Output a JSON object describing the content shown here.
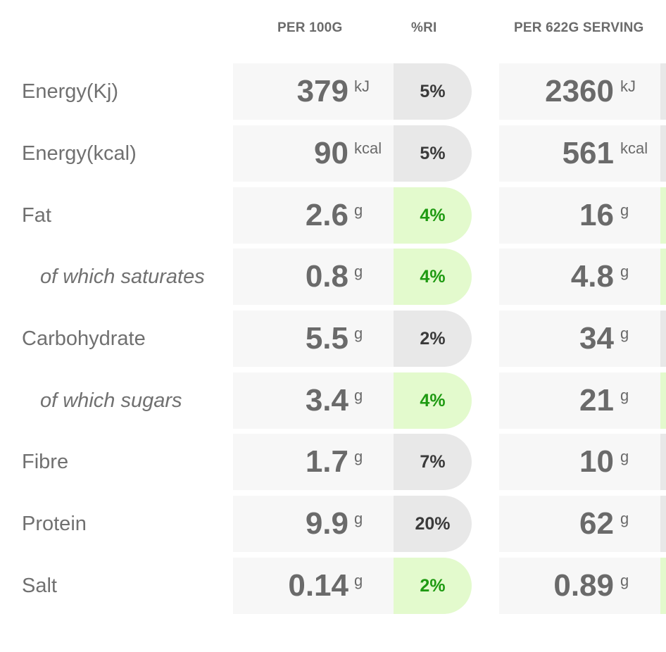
{
  "header": {
    "per100": "PER 100G",
    "ri": "%RI",
    "serving": "PER 622G SERVING"
  },
  "rows": [
    {
      "label": "Energy(Kj)",
      "indent": false,
      "v100": "379",
      "unit": "kJ",
      "ri": "5%",
      "level": "neutral",
      "vserv": "2360"
    },
    {
      "label": "Energy(kcal)",
      "indent": false,
      "v100": "90",
      "unit": "kcal",
      "ri": "5%",
      "level": "neutral",
      "vserv": "561"
    },
    {
      "label": "Fat",
      "indent": false,
      "v100": "2.6",
      "unit": "g",
      "ri": "4%",
      "level": "low",
      "vserv": "16"
    },
    {
      "label": "of which saturates",
      "indent": true,
      "v100": "0.8",
      "unit": "g",
      "ri": "4%",
      "level": "low",
      "vserv": "4.8"
    },
    {
      "label": "Carbohydrate",
      "indent": false,
      "v100": "5.5",
      "unit": "g",
      "ri": "2%",
      "level": "neutral",
      "vserv": "34"
    },
    {
      "label": "of which sugars",
      "indent": true,
      "v100": "3.4",
      "unit": "g",
      "ri": "4%",
      "level": "low",
      "vserv": "21"
    },
    {
      "label": "Fibre",
      "indent": false,
      "v100": "1.7",
      "unit": "g",
      "ri": "7%",
      "level": "neutral",
      "vserv": "10"
    },
    {
      "label": "Protein",
      "indent": false,
      "v100": "9.9",
      "unit": "g",
      "ri": "20%",
      "level": "neutral",
      "vserv": "62"
    },
    {
      "label": "Salt",
      "indent": false,
      "v100": "0.14",
      "unit": "g",
      "ri": "2%",
      "level": "low",
      "vserv": "0.89"
    }
  ],
  "colors": {
    "neutral_bg": "#e8e8e8",
    "low_bg": "#e3facd",
    "low_text": "#1f9a12"
  }
}
